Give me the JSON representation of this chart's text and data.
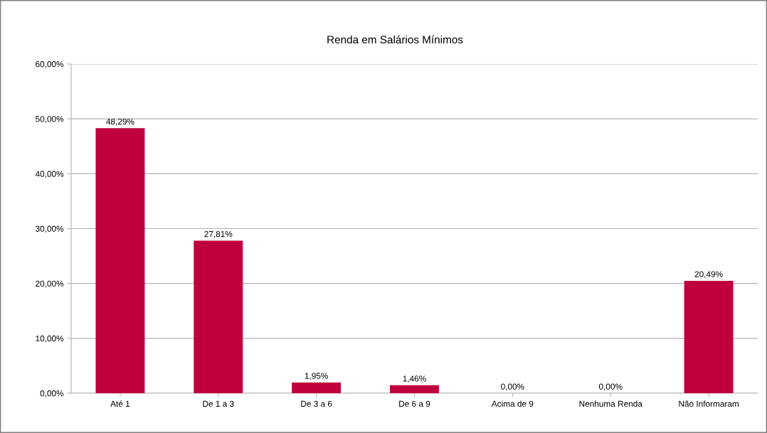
{
  "chart_data": {
    "type": "bar",
    "title": "Renda em Salários Mínimos",
    "categories": [
      "Até 1",
      "De 1 a 3",
      "De 3 a 6",
      "De 6 a 9",
      "Acima de 9",
      "Nenhuma Renda",
      "Não Informaram"
    ],
    "values": [
      48.29,
      27.81,
      1.95,
      1.46,
      0,
      0,
      20.49
    ],
    "value_labels": [
      "48,29%",
      "27,81%",
      "1,95%",
      "1,46%",
      "0,00%",
      "0,00%",
      "20,49%"
    ],
    "color": "#c0003c",
    "ylim": [
      0,
      60
    ],
    "yticks": [
      {
        "value": 0,
        "label": "0,00%"
      },
      {
        "value": 10,
        "label": "10,00%"
      },
      {
        "value": 20,
        "label": "20,00%"
      },
      {
        "value": 30,
        "label": "30,00%"
      },
      {
        "value": 40,
        "label": "40,00%"
      },
      {
        "value": 50,
        "label": "50,00%"
      },
      {
        "value": 60,
        "label": "60,00%"
      }
    ],
    "grid": "y"
  }
}
